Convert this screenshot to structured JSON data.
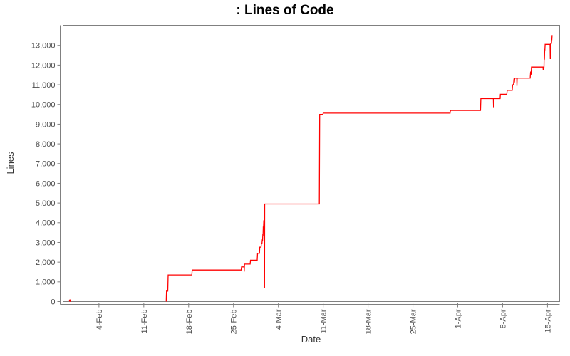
{
  "title": ": Lines of Code",
  "chart_data": {
    "type": "line",
    "title": ": Lines of Code",
    "xlabel": "Date",
    "ylabel": "Lines",
    "legend": "none",
    "grid": false,
    "x_unit": "days, 0 = 4-Feb",
    "xlim": [
      -5.6,
      71.9
    ],
    "ylim": [
      0,
      14020
    ],
    "y_ticks": [
      {
        "value": 0,
        "label": "0"
      },
      {
        "value": 1000,
        "label": "1,000"
      },
      {
        "value": 2000,
        "label": "2,000"
      },
      {
        "value": 3000,
        "label": "3,000"
      },
      {
        "value": 4000,
        "label": "4,000"
      },
      {
        "value": 5000,
        "label": "5,000"
      },
      {
        "value": 6000,
        "label": "6,000"
      },
      {
        "value": 7000,
        "label": "7,000"
      },
      {
        "value": 8000,
        "label": "8,000"
      },
      {
        "value": 9000,
        "label": "9,000"
      },
      {
        "value": 10000,
        "label": "10,000"
      },
      {
        "value": 11000,
        "label": "11,000"
      },
      {
        "value": 12000,
        "label": "12,000"
      },
      {
        "value": 13000,
        "label": "13,000"
      }
    ],
    "x_ticks": [
      {
        "day": 0,
        "label": "4-Feb"
      },
      {
        "day": 7,
        "label": "11-Feb"
      },
      {
        "day": 14,
        "label": "18-Feb"
      },
      {
        "day": 21,
        "label": "25-Feb"
      },
      {
        "day": 28,
        "label": "4-Mar"
      },
      {
        "day": 35,
        "label": "11-Mar"
      },
      {
        "day": 42,
        "label": "18-Mar"
      },
      {
        "day": 49,
        "label": "25-Mar"
      },
      {
        "day": 56,
        "label": "1-Apr"
      },
      {
        "day": 63,
        "label": "8-Apr"
      },
      {
        "day": 70,
        "label": "15-Apr"
      }
    ],
    "isolated_point": {
      "day": -4.5,
      "value": 50
    },
    "series": [
      {
        "name": "lines-of-code",
        "color": "#ff0000",
        "points": [
          [
            10.5,
            0
          ],
          [
            10.55,
            530
          ],
          [
            10.75,
            530
          ],
          [
            10.8,
            1350
          ],
          [
            14.5,
            1350
          ],
          [
            14.55,
            1600
          ],
          [
            22.2,
            1600
          ],
          [
            22.25,
            1760
          ],
          [
            22.65,
            1760
          ],
          [
            22.68,
            1520
          ],
          [
            22.72,
            1900
          ],
          [
            23.6,
            1900
          ],
          [
            23.65,
            2100
          ],
          [
            24.7,
            2100
          ],
          [
            24.75,
            2450
          ],
          [
            25.05,
            2450
          ],
          [
            25.1,
            2760
          ],
          [
            25.3,
            2760
          ],
          [
            25.35,
            2950
          ],
          [
            25.45,
            2950
          ],
          [
            25.5,
            3150
          ],
          [
            25.53,
            3080
          ],
          [
            25.58,
            3420
          ],
          [
            25.61,
            3350
          ],
          [
            25.65,
            3800
          ],
          [
            25.68,
            3720
          ],
          [
            25.72,
            4100
          ],
          [
            25.78,
            4100
          ],
          [
            25.8,
            700
          ],
          [
            25.84,
            700
          ],
          [
            25.87,
            4950
          ],
          [
            34.4,
            4950
          ],
          [
            34.45,
            9500
          ],
          [
            34.95,
            9500
          ],
          [
            35.0,
            9560
          ],
          [
            54.8,
            9560
          ],
          [
            54.85,
            9700
          ],
          [
            59.55,
            9700
          ],
          [
            59.6,
            10300
          ],
          [
            61.55,
            10300
          ],
          [
            61.58,
            9860
          ],
          [
            61.62,
            10300
          ],
          [
            62.6,
            10300
          ],
          [
            62.65,
            10520
          ],
          [
            63.65,
            10520
          ],
          [
            63.7,
            10720
          ],
          [
            64.5,
            10720
          ],
          [
            64.55,
            11000
          ],
          [
            64.7,
            11000
          ],
          [
            64.75,
            11240
          ],
          [
            64.85,
            11180
          ],
          [
            64.9,
            11340
          ],
          [
            65.2,
            11340
          ],
          [
            65.23,
            10940
          ],
          [
            65.27,
            11340
          ],
          [
            67.3,
            11340
          ],
          [
            67.35,
            11620
          ],
          [
            67.45,
            11560
          ],
          [
            67.5,
            11900
          ],
          [
            69.3,
            11900
          ],
          [
            69.33,
            11740
          ],
          [
            69.37,
            11900
          ],
          [
            69.45,
            11900
          ],
          [
            69.48,
            12350
          ],
          [
            69.52,
            12280
          ],
          [
            69.56,
            12800
          ],
          [
            69.59,
            12740
          ],
          [
            69.63,
            13050
          ],
          [
            70.4,
            13050
          ],
          [
            70.43,
            12330
          ],
          [
            70.47,
            12330
          ],
          [
            70.5,
            13080
          ],
          [
            70.62,
            13100
          ],
          [
            70.65,
            13300
          ],
          [
            70.68,
            13260
          ],
          [
            70.72,
            13520
          ]
        ]
      }
    ],
    "colors": {
      "series": "#ff0000",
      "frame": "#808080",
      "axis_line": "#808080",
      "tick_label": "#4d4d4d",
      "axis_title": "#333333",
      "title": "#000000",
      "background": "#ffffff"
    }
  }
}
